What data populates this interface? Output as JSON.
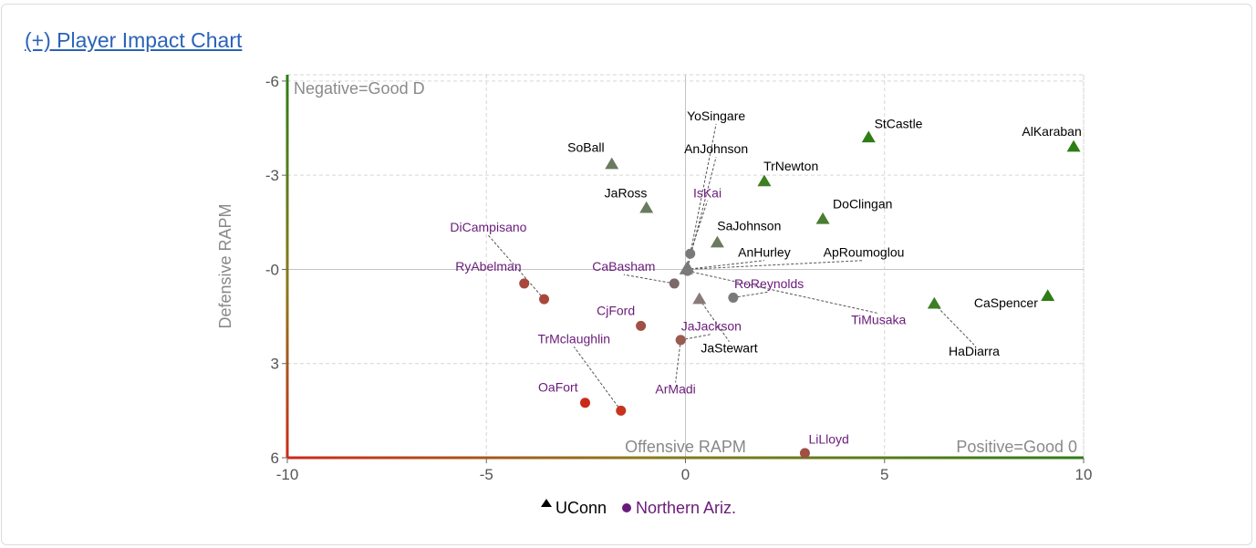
{
  "header": {
    "title": "(+) Player Impact Chart"
  },
  "colors": {
    "team_a": "#000000",
    "team_b": "#6a1b7a",
    "good_green": "#2e7d16",
    "bad_red": "#cc2a18",
    "gray_marker": "#7a7a7a"
  },
  "chart_data": {
    "type": "scatter",
    "xlabel": "Offensive RAPM",
    "ylabel": "Defensive RAPM",
    "xlim": [
      -10,
      10
    ],
    "ylim": [
      -6.2,
      6
    ],
    "y_inverted": true,
    "xticks": [
      -10,
      -5,
      0,
      5,
      10
    ],
    "yticks": [
      -6,
      -3,
      0,
      3,
      6
    ],
    "xtick_labels": [
      "-10",
      "-5",
      "0",
      "5",
      "10"
    ],
    "ytick_labels": [
      "-6",
      "-3",
      "-0",
      "3",
      "6"
    ],
    "grid": true,
    "corner_labels": {
      "top_left": "Negative=Good D",
      "bottom_right": "Positive=Good 0"
    },
    "legend": {
      "placement": "bottom-center",
      "entries": [
        {
          "name": "UConn",
          "marker": "triangle"
        },
        {
          "name": "Northern Ariz.",
          "marker": "circle"
        }
      ]
    },
    "series": [
      {
        "name": "UConn",
        "marker": "triangle",
        "points": [
          {
            "label": "AlKaraban",
            "x": 9.75,
            "y": -3.9,
            "color": "#2e7d16",
            "lx": 9.2,
            "ly": -4.25
          },
          {
            "label": "StCastle",
            "x": 4.6,
            "y": -4.2,
            "color": "#2e7d16",
            "lx": 5.35,
            "ly": -4.5
          },
          {
            "label": "CaSpencer",
            "x": 9.1,
            "y": 0.85,
            "color": "#2e7d16",
            "lx": 8.05,
            "ly": 1.2
          },
          {
            "label": "HaDiarra",
            "x": 6.25,
            "y": 1.1,
            "color": "#3d7f22",
            "lx": 7.25,
            "ly": 2.75,
            "leader": true
          },
          {
            "label": "TrNewton",
            "x": 1.98,
            "y": -2.8,
            "color": "#3d7f22",
            "lx": 2.65,
            "ly": -3.15
          },
          {
            "label": "DoClingan",
            "x": 3.45,
            "y": -1.6,
            "color": "#4a7d2f",
            "lx": 4.45,
            "ly": -1.95
          },
          {
            "label": "SaJohnson",
            "x": 0.8,
            "y": -0.85,
            "color": "#6a7a5e",
            "lx": 1.6,
            "ly": -1.25
          },
          {
            "label": "SoBall",
            "x": -1.85,
            "y": -3.35,
            "color": "#6a7a5e",
            "lx": -2.5,
            "ly": -3.75
          },
          {
            "label": "JaRoss",
            "x": -0.98,
            "y": -1.95,
            "color": "#6a7a5e",
            "lx": -1.5,
            "ly": -2.3
          },
          {
            "label": "YoSingare",
            "x": 0.05,
            "y": -0.05,
            "color": "#7a7a7a",
            "lx": 0.77,
            "ly": -4.75,
            "leader": true
          },
          {
            "label": "AnJohnson",
            "x": 0.05,
            "y": -0.05,
            "color": "#7a7a7a",
            "lx": 0.77,
            "ly": -3.7,
            "leader": true
          },
          {
            "label": "AnHurley",
            "x": 0.02,
            "y": 0,
            "color": "#7a7a7a",
            "lx": 1.98,
            "ly": -0.4,
            "leader": true
          },
          {
            "label": "ApRoumoglou",
            "x": 0.02,
            "y": 0,
            "color": "#7a7a7a",
            "lx": 4.48,
            "ly": -0.4,
            "leader": true
          },
          {
            "label": "JaStewart",
            "x": 0.35,
            "y": 0.95,
            "color": "#8a7a7a",
            "lx": 1.1,
            "ly": 2.65,
            "leader": true
          }
        ]
      },
      {
        "name": "Northern Ariz.",
        "marker": "circle",
        "points": [
          {
            "label": "IsKai",
            "x": 0.12,
            "y": -0.5,
            "color": "#7a7a7a",
            "lx": 0.55,
            "ly": -2.3,
            "leader": true
          },
          {
            "label": "CaBasham",
            "x": -0.28,
            "y": 0.45,
            "color": "#7a6a6a",
            "lx": -1.55,
            "ly": 0.05,
            "leader": true
          },
          {
            "label": "RoReynolds",
            "x": 1.2,
            "y": 0.9,
            "color": "#7a7a7a",
            "lx": 2.1,
            "ly": 0.6,
            "leader": true
          },
          {
            "label": "TiMusaka",
            "x": 0.05,
            "y": 0.05,
            "color": "#7a7a7a",
            "lx": 4.85,
            "ly": 1.75,
            "leader": true
          },
          {
            "label": "RyAbelman",
            "x": -4.05,
            "y": 0.45,
            "color": "#a8483c",
            "lx": -4.95,
            "ly": 0.05
          },
          {
            "label": "DiCampisano",
            "x": -3.55,
            "y": 0.95,
            "color": "#a8483c",
            "lx": -4.95,
            "ly": -1.2,
            "leader": true
          },
          {
            "label": "CjFord",
            "x": -1.12,
            "y": 1.8,
            "color": "#a05045",
            "lx": -1.75,
            "ly": 1.45
          },
          {
            "label": "JaJackson",
            "x": -0.12,
            "y": 2.25,
            "color": "#9a5a50",
            "lx": 0.65,
            "ly": 1.95,
            "leader": true
          },
          {
            "label": "ArMadi",
            "x": -0.12,
            "y": 2.25,
            "color": "#9a5a50",
            "lx": -0.25,
            "ly": 3.95,
            "leader": true
          },
          {
            "label": "TrMclaughlin",
            "x": -1.62,
            "y": 4.5,
            "color": "#c8331e",
            "lx": -2.8,
            "ly": 2.35,
            "leader": true
          },
          {
            "label": "OaFort",
            "x": -2.52,
            "y": 4.25,
            "color": "#cc2a18",
            "lx": -3.2,
            "ly": 3.9
          },
          {
            "label": "LiLloyd",
            "x": 3.0,
            "y": 5.85,
            "color": "#a05045",
            "lx": 3.6,
            "ly": 5.55
          }
        ]
      }
    ]
  }
}
